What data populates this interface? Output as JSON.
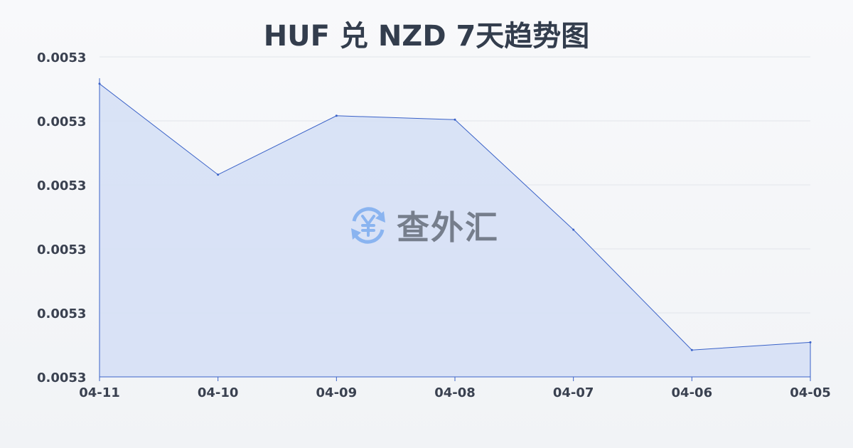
{
  "title": "HUF 兑 NZD 7天趋势图",
  "watermark": {
    "text": "查外汇",
    "icon": "yen-exchange-icon",
    "icon_color": "#8ab4f0"
  },
  "colors": {
    "line": "#3a62c8",
    "fill": "#d6e0f5",
    "grid": "#e2e5ea"
  },
  "chart_data": {
    "type": "area",
    "title": "HUF 兑 NZD 7天趋势图",
    "xlabel": "",
    "ylabel": "",
    "categories": [
      "04-11",
      "04-10",
      "04-09",
      "04-08",
      "04-07",
      "04-06",
      "04-05"
    ],
    "values": [
      0.0053229,
      0.0053158,
      0.0053204,
      0.0053201,
      0.0053115,
      0.0053021,
      0.0053027
    ],
    "ylim": [
      0.0053,
      0.005325
    ],
    "yticks": [
      0.0053,
      0.005305,
      0.00531,
      0.005315,
      0.00532,
      0.005325
    ],
    "ytick_labels": [
      "0.0053",
      "0.0053",
      "0.0053",
      "0.0053",
      "0.0053",
      "0.0053"
    ],
    "grid": true,
    "legend": "none"
  }
}
